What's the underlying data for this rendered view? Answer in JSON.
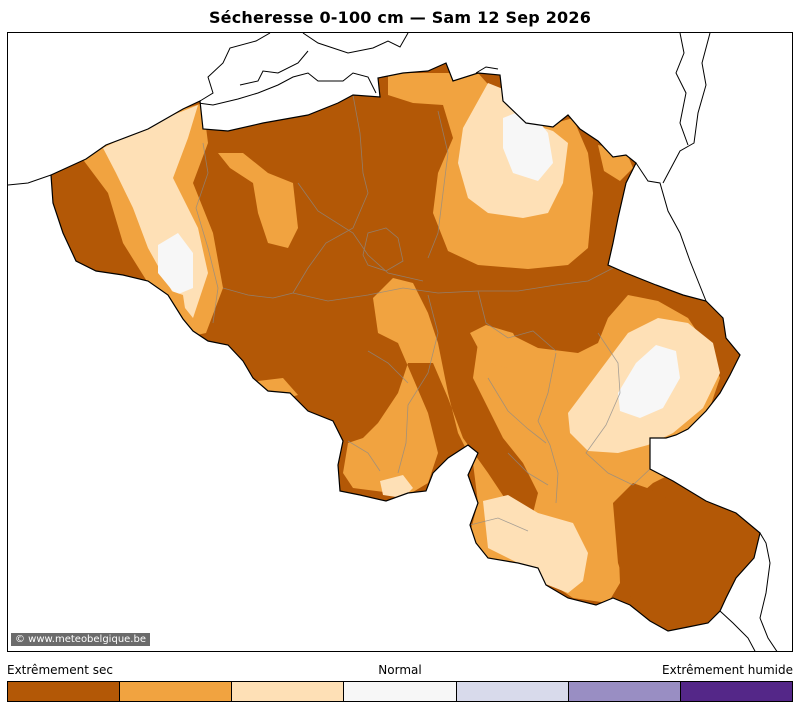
{
  "title": "Sécheresse 0-100 cm  —  Sam 12 Sep 2026",
  "credit": "© www.meteobelgique.be",
  "legend": {
    "left_label": "Extrêmement sec",
    "middle_label": "Normal",
    "right_label": "Extrêmement humide",
    "classes": [
      {
        "color": "#b35806"
      },
      {
        "color": "#f1a340"
      },
      {
        "color": "#fee0b6"
      },
      {
        "color": "#f7f7f7"
      },
      {
        "color": "#d8daeb"
      },
      {
        "color": "#998ec3"
      },
      {
        "color": "#542788"
      }
    ]
  }
}
